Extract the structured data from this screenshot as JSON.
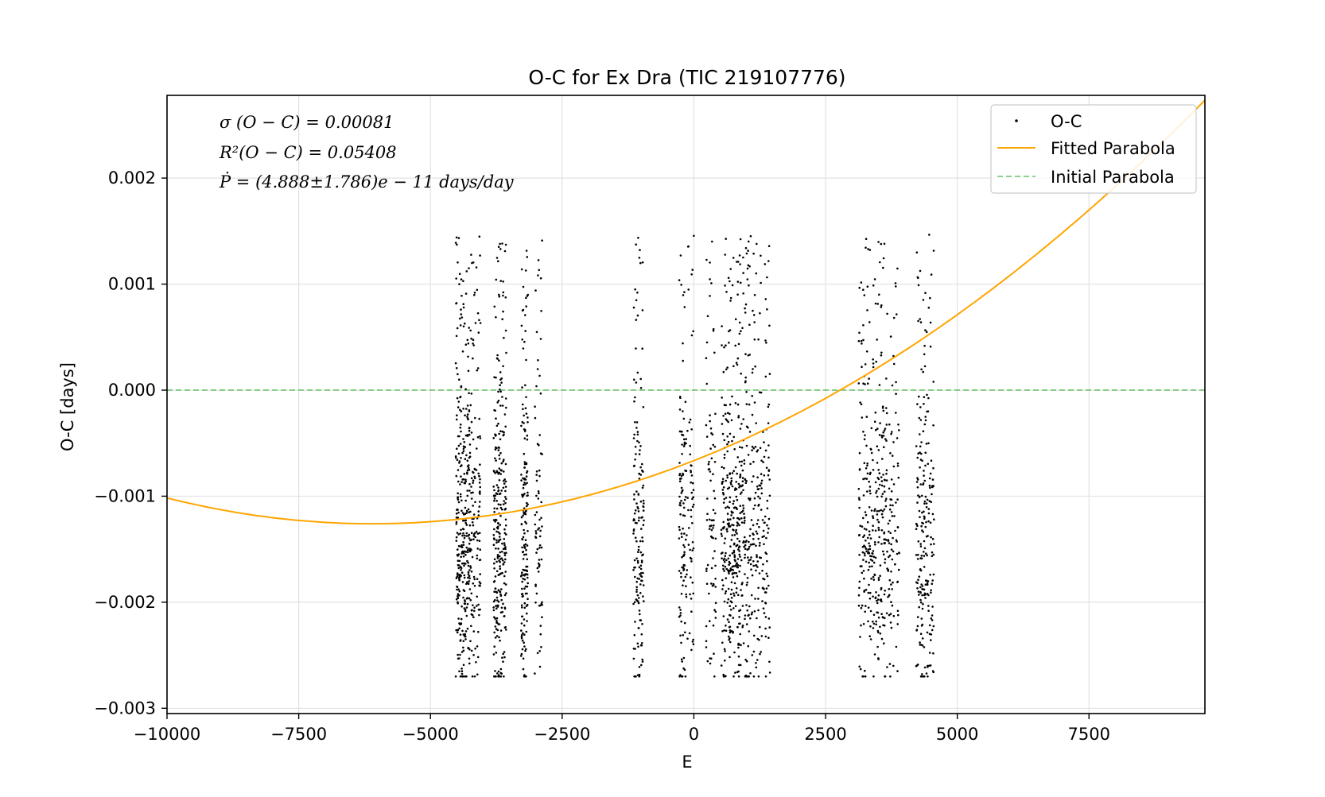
{
  "chart_data": {
    "type": "scatter",
    "title": "O-C for Ex Dra (TIC 219107776)",
    "xlabel": "E",
    "ylabel": "O-C [days]",
    "xlim": [
      -10000,
      9700
    ],
    "ylim": [
      -0.00305,
      0.00278
    ],
    "grid": true,
    "legend_position": "upper right",
    "x_ticks": [
      -10000,
      -7500,
      -5000,
      -2500,
      0,
      2500,
      5000,
      7500
    ],
    "x_tick_labels": [
      "−10000",
      "−7500",
      "−5000",
      "−2500",
      "0",
      "2500",
      "5000",
      "7500"
    ],
    "y_ticks": [
      -0.003,
      -0.002,
      -0.001,
      0.0,
      0.001,
      0.002
    ],
    "y_tick_labels": [
      "−0.003",
      "−0.002",
      "−0.001",
      "0.000",
      "0.001",
      "0.002"
    ],
    "annotations": [
      "σ (O − C) = 0.00081",
      "R²(O − C) = 0.05408",
      "Ṗ = (4.888±1.786)e − 11 days/day"
    ],
    "series": [
      {
        "name": "O-C",
        "kind": "points",
        "color": "#000000",
        "clusters": [
          {
            "x_range": [
              -4520,
              -4380
            ],
            "count": 165
          },
          {
            "x_range": [
              -4380,
              -4250
            ],
            "count": 150
          },
          {
            "x_range": [
              -4250,
              -4050
            ],
            "count": 140
          },
          {
            "x_range": [
              -3800,
              -3680
            ],
            "count": 160
          },
          {
            "x_range": [
              -3680,
              -3560
            ],
            "count": 130
          },
          {
            "x_range": [
              -3280,
              -3150
            ],
            "count": 170
          },
          {
            "x_range": [
              -3020,
              -2880
            ],
            "count": 75
          },
          {
            "x_range": [
              -1150,
              -1060
            ],
            "count": 70
          },
          {
            "x_range": [
              -1060,
              -950
            ],
            "count": 90
          },
          {
            "x_range": [
              -280,
              -170
            ],
            "count": 95
          },
          {
            "x_range": [
              -170,
              0
            ],
            "count": 70
          },
          {
            "x_range": [
              230,
              420
            ],
            "count": 85
          },
          {
            "x_range": [
              520,
              780
            ],
            "count": 220
          },
          {
            "x_range": [
              780,
              1050
            ],
            "count": 210
          },
          {
            "x_range": [
              1050,
              1450
            ],
            "count": 200
          },
          {
            "x_range": [
              3130,
              3400
            ],
            "count": 150
          },
          {
            "x_range": [
              3400,
              3620
            ],
            "count": 140
          },
          {
            "x_range": [
              3620,
              3900
            ],
            "count": 120
          },
          {
            "x_range": [
              4220,
              4400
            ],
            "count": 140
          },
          {
            "x_range": [
              4400,
              4560
            ],
            "count": 90
          }
        ],
        "y_range": [
          -0.0027,
          0.00147
        ],
        "y_center": -0.0011,
        "y_spread": 0.00081
      },
      {
        "name": "Fitted Parabola",
        "kind": "line",
        "color": "#ffa500",
        "quadratic": {
          "vertex_x": -6100,
          "vertex_y": -0.00126,
          "curvature": 1.6e-11
        }
      },
      {
        "name": "Initial Parabola",
        "kind": "dashed-line",
        "color": "#6abf6a",
        "y": 0.0
      }
    ]
  }
}
